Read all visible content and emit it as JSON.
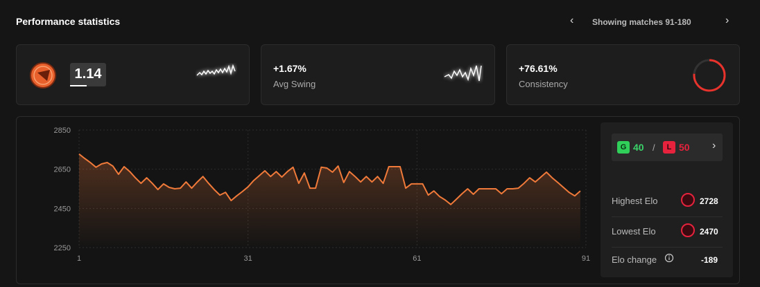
{
  "header": {
    "title": "Performance statistics",
    "range": "Showing matches 91-180"
  },
  "cards": {
    "kd": 1.14,
    "swing": {
      "value": "+1.67%",
      "label": "Avg Swing"
    },
    "consistency": {
      "value_label": "+76.61%",
      "value": 76.61,
      "label": "Consistency"
    }
  },
  "chart_data": {
    "type": "line",
    "x": [
      1,
      2,
      3,
      4,
      5,
      6,
      7,
      8,
      9,
      10,
      11,
      12,
      13,
      14,
      15,
      16,
      17,
      18,
      19,
      20,
      21,
      22,
      23,
      24,
      25,
      26,
      27,
      28,
      29,
      30,
      31,
      32,
      33,
      34,
      35,
      36,
      37,
      38,
      39,
      40,
      41,
      42,
      43,
      44,
      45,
      46,
      47,
      48,
      49,
      50,
      51,
      52,
      53,
      54,
      55,
      56,
      57,
      58,
      59,
      60,
      61,
      62,
      63,
      64,
      65,
      66,
      67,
      68,
      69,
      70,
      71,
      72,
      73,
      74,
      75,
      76,
      77,
      78,
      79,
      80,
      81,
      82,
      83,
      84,
      85,
      86,
      87,
      88,
      89,
      90
    ],
    "values": [
      2728,
      2705,
      2684,
      2660,
      2677,
      2684,
      2666,
      2624,
      2663,
      2638,
      2606,
      2578,
      2606,
      2578,
      2546,
      2575,
      2557,
      2550,
      2553,
      2585,
      2553,
      2585,
      2613,
      2578,
      2546,
      2518,
      2532,
      2490,
      2514,
      2536,
      2560,
      2592,
      2617,
      2642,
      2613,
      2638,
      2610,
      2638,
      2660,
      2578,
      2631,
      2553,
      2553,
      2660,
      2656,
      2635,
      2666,
      2582,
      2638,
      2613,
      2585,
      2613,
      2585,
      2613,
      2578,
      2663,
      2663,
      2663,
      2553,
      2575,
      2575,
      2575,
      2518,
      2539,
      2511,
      2493,
      2470,
      2497,
      2525,
      2550,
      2522,
      2550,
      2550,
      2550,
      2550,
      2525,
      2550,
      2550,
      2553,
      2578,
      2606,
      2585,
      2610,
      2635,
      2606,
      2582,
      2557,
      2532,
      2514,
      2539
    ],
    "color": "#f07a3a",
    "xlim": [
      1,
      91
    ],
    "xticks": [
      1,
      31,
      61,
      91
    ],
    "ylim": [
      2250,
      2850
    ],
    "yticks": [
      2250,
      2450,
      2650,
      2850
    ],
    "grid": true
  },
  "record": {
    "wins_label": "G",
    "wins": 40,
    "separator": "/",
    "losses_label": "L",
    "losses": 50
  },
  "elo": [
    {
      "label": "Highest Elo",
      "value": 2728
    },
    {
      "label": "Lowest Elo",
      "value": 2470
    },
    {
      "label": "Elo change",
      "value": -189
    }
  ]
}
